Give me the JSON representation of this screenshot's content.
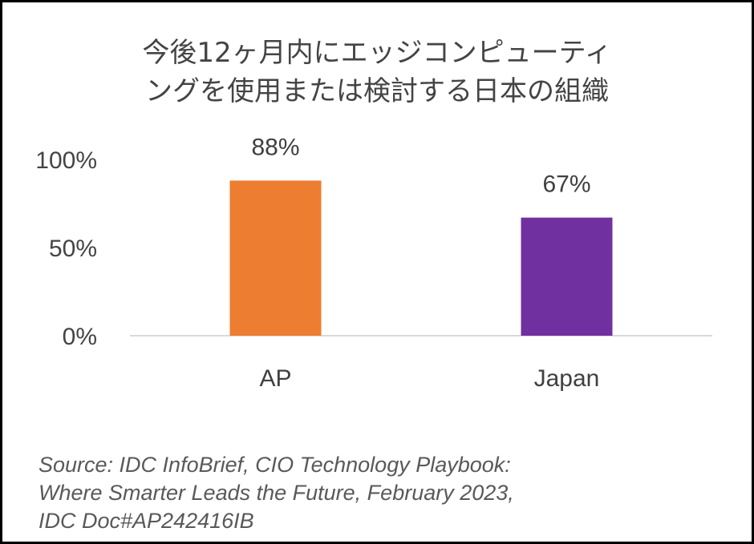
{
  "chart_data": {
    "type": "bar",
    "title_lines": [
      "今後12ヶ月内にエッジコンピューティ",
      "ングを使用または検討する日本の組織"
    ],
    "categories": [
      "AP",
      "Japan"
    ],
    "values": [
      88,
      67
    ],
    "data_labels": [
      "88%",
      "67%"
    ],
    "colors": [
      "#ED7D31",
      "#7030A0"
    ],
    "yticks": [
      0,
      50,
      100
    ],
    "ytick_labels": [
      "0%",
      "50%",
      "100%"
    ],
    "ylim": [
      0,
      100
    ],
    "xlabel": "",
    "ylabel": "",
    "grid": false,
    "legend": "none"
  },
  "source": {
    "lines": [
      "Source: IDC InfoBrief, CIO Technology Playbook:",
      "Where Smarter Leads the Future, February 2023,",
      "IDC Doc#AP242416IB"
    ]
  }
}
